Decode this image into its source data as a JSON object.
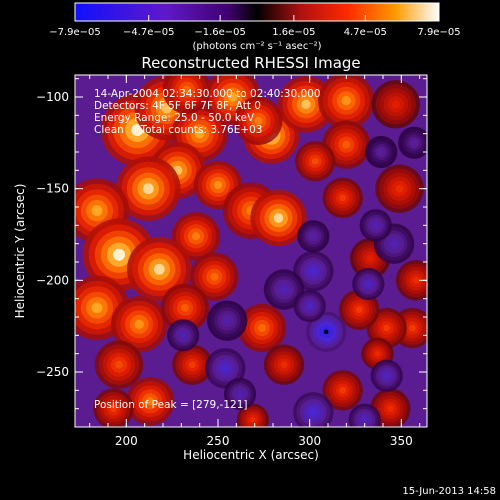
{
  "chart_data": {
    "type": "heatmap",
    "title": "Reconstructed RHESSI Image",
    "xlabel": "Heliocentric X (arcsec)",
    "ylabel": "Heliocentric Y (arcsec)",
    "xlim": [
      172,
      364
    ],
    "ylim": [
      -280,
      -88
    ],
    "x_ticks": [
      200,
      250,
      300,
      350
    ],
    "y_ticks": [
      -100,
      -150,
      -200,
      -250
    ],
    "x_tick_labels": [
      "200",
      "250",
      "300",
      "350"
    ],
    "y_tick_labels": [
      "−100",
      "−150",
      "−200",
      "−250"
    ],
    "colorbar": {
      "min": -7.9e-05,
      "max": 7.9e-05,
      "tick_values": [
        -7.9e-05,
        -4.7e-05,
        -1.6e-05,
        1.6e-05,
        4.7e-05,
        7.9e-05
      ],
      "tick_labels": [
        "−7.9e−05",
        "−4.7e−05",
        "−1.6e−05",
        "1.6e−05",
        "4.7e−05",
        "7.9e−05"
      ],
      "units_label": "(photons cm⁻² s⁻¹ asec⁻²)"
    },
    "annotations": {
      "time_range": "14-Apr-2004 02:34:30.000 to 02:40:30.000",
      "detectors": "Detectors: 4F 5F 6F 7F 8F, Att 0",
      "energy_range": "Energy Range: 25.0 - 50.0 keV",
      "clean_counts": "Clean     Total counts: 3.76E+03",
      "peak_position": "Position of Peak = [279,-121]"
    },
    "peak": {
      "x": 279,
      "y": -121
    },
    "min_marker": {
      "x": 309,
      "y": -228
    },
    "grid": false,
    "legend": "colorbar-top",
    "image_blobs": [
      {
        "x": 206,
        "y": -118,
        "s": 9,
        "a": 1.0
      },
      {
        "x": 222,
        "y": -106,
        "s": 8,
        "a": 0.9
      },
      {
        "x": 240,
        "y": -120,
        "s": 7,
        "a": 0.85
      },
      {
        "x": 233,
        "y": -96,
        "s": 6,
        "a": 0.7
      },
      {
        "x": 258,
        "y": -100,
        "s": 7,
        "a": 0.85
      },
      {
        "x": 279,
        "y": -121,
        "s": 7,
        "a": 1.0
      },
      {
        "x": 298,
        "y": -104,
        "s": 7,
        "a": 0.9
      },
      {
        "x": 272,
        "y": -113,
        "s": 6,
        "a": 0.75
      },
      {
        "x": 228,
        "y": -140,
        "s": 7,
        "a": 0.9
      },
      {
        "x": 212,
        "y": -150,
        "s": 8,
        "a": 0.95
      },
      {
        "x": 250,
        "y": -148,
        "s": 6,
        "a": 0.8
      },
      {
        "x": 268,
        "y": -162,
        "s": 7,
        "a": 0.75
      },
      {
        "x": 283,
        "y": -166,
        "s": 7,
        "a": 0.95
      },
      {
        "x": 238,
        "y": -176,
        "s": 6,
        "a": 0.75
      },
      {
        "x": 184,
        "y": -162,
        "s": 8,
        "a": 0.85
      },
      {
        "x": 196,
        "y": -186,
        "s": 9,
        "a": 1.0
      },
      {
        "x": 218,
        "y": -194,
        "s": 8,
        "a": 0.95
      },
      {
        "x": 248,
        "y": -198,
        "s": 6,
        "a": 0.7
      },
      {
        "x": 184,
        "y": -215,
        "s": 8,
        "a": 0.85
      },
      {
        "x": 207,
        "y": -224,
        "s": 7,
        "a": 0.8
      },
      {
        "x": 232,
        "y": -215,
        "s": 6,
        "a": 0.65
      },
      {
        "x": 196,
        "y": -246,
        "s": 6,
        "a": 0.6
      },
      {
        "x": 236,
        "y": -246,
        "s": 5,
        "a": 0.55
      },
      {
        "x": 213,
        "y": -266,
        "s": 6,
        "a": 0.75
      },
      {
        "x": 193,
        "y": -270,
        "s": 5,
        "a": 0.55
      },
      {
        "x": 320,
        "y": -102,
        "s": 7,
        "a": 0.8
      },
      {
        "x": 320,
        "y": -126,
        "s": 6,
        "a": 0.65
      },
      {
        "x": 318,
        "y": -155,
        "s": 5,
        "a": 0.55
      },
      {
        "x": 347,
        "y": -104,
        "s": 6,
        "a": 0.45
      },
      {
        "x": 349,
        "y": -150,
        "s": 6,
        "a": 0.5
      },
      {
        "x": 333,
        "y": -188,
        "s": 5,
        "a": 0.45
      },
      {
        "x": 303,
        "y": -135,
        "s": 5,
        "a": 0.6
      },
      {
        "x": 358,
        "y": -200,
        "s": 5,
        "a": 0.5
      },
      {
        "x": 356,
        "y": -226,
        "s": 5,
        "a": 0.55
      },
      {
        "x": 342,
        "y": -226,
        "s": 5,
        "a": 0.55
      },
      {
        "x": 327,
        "y": -216,
        "s": 5,
        "a": 0.55
      },
      {
        "x": 337,
        "y": -240,
        "s": 4,
        "a": 0.5
      },
      {
        "x": 274,
        "y": -226,
        "s": 6,
        "a": 0.7
      },
      {
        "x": 286,
        "y": -246,
        "s": 5,
        "a": 0.5
      },
      {
        "x": 318,
        "y": -260,
        "s": 5,
        "a": 0.55
      },
      {
        "x": 344,
        "y": -270,
        "s": 5,
        "a": 0.5
      },
      {
        "x": 269,
        "y": -276,
        "s": 4,
        "a": 0.5
      },
      {
        "x": 302,
        "y": -195,
        "s": 5,
        "a": -0.55
      },
      {
        "x": 286,
        "y": -205,
        "s": 5,
        "a": -0.45
      },
      {
        "x": 309,
        "y": -228,
        "s": 5,
        "a": -0.8
      },
      {
        "x": 300,
        "y": -214,
        "s": 4,
        "a": -0.5
      },
      {
        "x": 332,
        "y": -202,
        "s": 4,
        "a": -0.5
      },
      {
        "x": 346,
        "y": -180,
        "s": 5,
        "a": -0.45
      },
      {
        "x": 336,
        "y": -170,
        "s": 4,
        "a": -0.45
      },
      {
        "x": 302,
        "y": -176,
        "s": 4,
        "a": -0.4
      },
      {
        "x": 255,
        "y": -222,
        "s": 5,
        "a": -0.4
      },
      {
        "x": 254,
        "y": -248,
        "s": 5,
        "a": -0.55
      },
      {
        "x": 262,
        "y": -262,
        "s": 4,
        "a": -0.45
      },
      {
        "x": 342,
        "y": -252,
        "s": 4,
        "a": -0.5
      },
      {
        "x": 302,
        "y": -272,
        "s": 5,
        "a": -0.6
      },
      {
        "x": 330,
        "y": -276,
        "s": 4,
        "a": -0.5
      },
      {
        "x": 231,
        "y": -230,
        "s": 4,
        "a": -0.45
      },
      {
        "x": 357,
        "y": -125,
        "s": 4,
        "a": -0.35
      },
      {
        "x": 339,
        "y": -130,
        "s": 4,
        "a": -0.35
      }
    ]
  },
  "footer": {
    "date": "15-Jun-2013 14:58"
  }
}
